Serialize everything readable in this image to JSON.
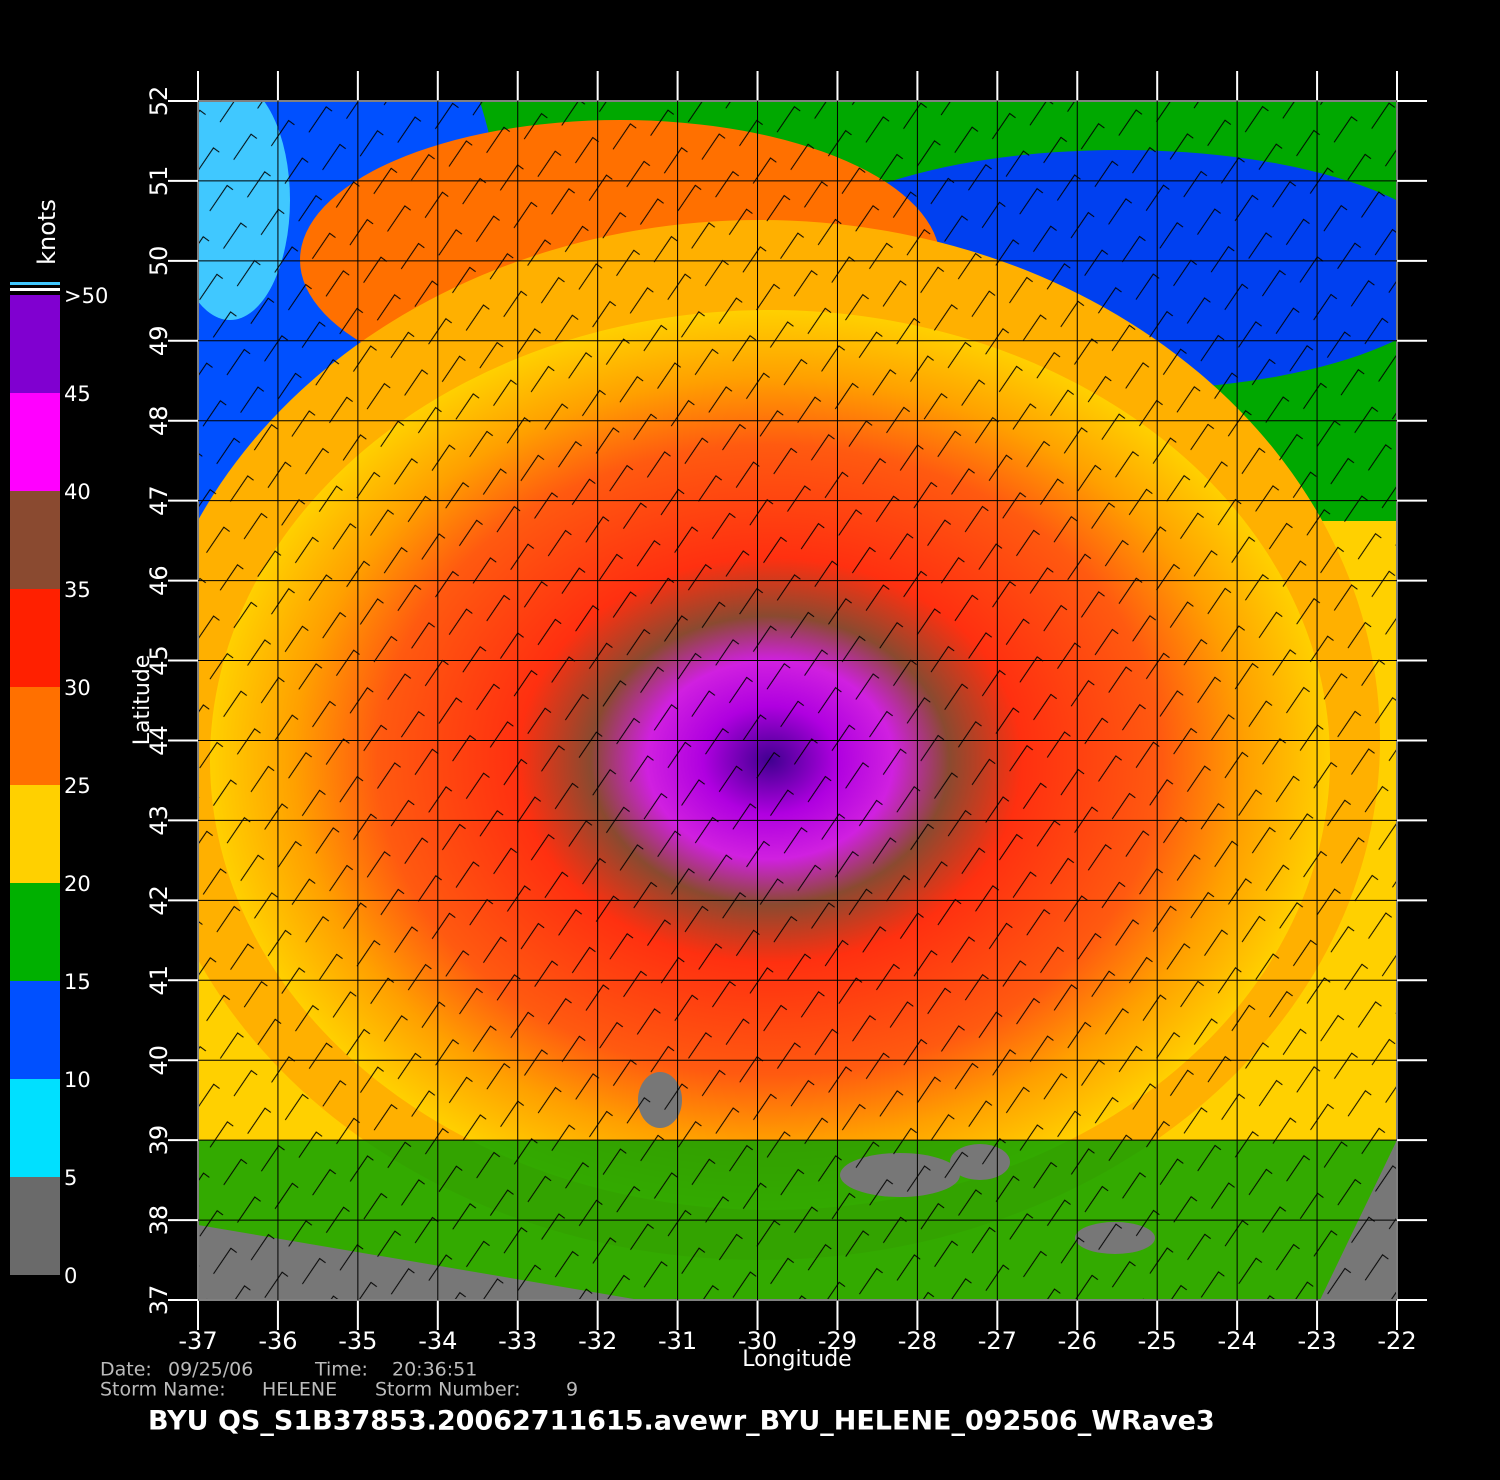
{
  "chart_data": {
    "type": "wind-map",
    "xlabel": "Longitude",
    "ylabel": "Latitude",
    "xlim": [
      -37,
      -22
    ],
    "xticks": [
      -37,
      -36,
      -35,
      -34,
      -33,
      -32,
      -31,
      -30,
      -29,
      -28,
      -27,
      -26,
      -25,
      -24,
      -23,
      -22
    ],
    "ylim": [
      37,
      52
    ],
    "yticks": [
      37,
      38,
      39,
      40,
      41,
      42,
      43,
      44,
      45,
      46,
      47,
      48,
      49,
      50,
      51,
      52
    ],
    "grid": true,
    "colorbar": {
      "title": "knots",
      "ticks": [
        0,
        5,
        10,
        15,
        20,
        25,
        30,
        35,
        40,
        45,
        {
          "value": 50,
          "label": ">50"
        }
      ],
      "colors": [
        "#6a6a6a",
        "#00e0ff",
        "#0050ff",
        "#00b000",
        "#ffd000",
        "#ff7000",
        "#ff2000",
        "#8a4a30",
        "#ff00ff",
        "#8000d0"
      ]
    },
    "footer": {
      "date_label": "Date:",
      "date": "09/25/06",
      "time_label": "Time:",
      "time": "20:36:51",
      "storm_name_label": "Storm Name:",
      "storm_name": "HELENE",
      "storm_number_label": "Storm Number:",
      "storm_number": 9,
      "product": "BYU QS_S1B37853.20062711615.avewr_BYU_HELENE_092506_WRave3"
    }
  }
}
